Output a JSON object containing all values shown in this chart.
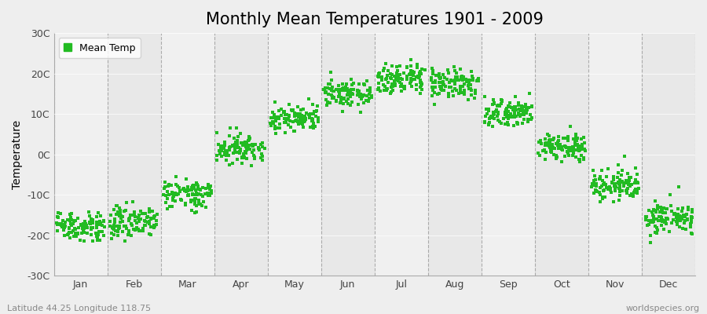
{
  "title": "Monthly Mean Temperatures 1901 - 2009",
  "ylabel": "Temperature",
  "yticks": [
    -30,
    -20,
    -10,
    0,
    10,
    20,
    30
  ],
  "ytick_labels": [
    "-30C",
    "-20C",
    "-10C",
    "0C",
    "10C",
    "20C",
    "30C"
  ],
  "ylim": [
    -30,
    30
  ],
  "xlim": [
    0,
    12
  ],
  "months": [
    "Jan",
    "Feb",
    "Mar",
    "Apr",
    "May",
    "Jun",
    "Jul",
    "Aug",
    "Sep",
    "Oct",
    "Nov",
    "Dec"
  ],
  "month_centers": [
    0.5,
    1.5,
    2.5,
    3.5,
    4.5,
    5.5,
    6.5,
    7.5,
    8.5,
    9.5,
    10.5,
    11.5
  ],
  "month_means": [
    -18.0,
    -16.5,
    -9.5,
    1.5,
    9.0,
    15.5,
    19.0,
    17.5,
    10.5,
    2.0,
    -7.5,
    -15.5
  ],
  "amplitude": 18.5,
  "phase_shift": 1.0,
  "base_temp": 0.8,
  "year_noise_std": 1.5,
  "month_noise_std": 1.2,
  "n_years": 109,
  "dot_color": "#22bb22",
  "dot_size": 5,
  "background_color": "#eeeeee",
  "stripe_colors": [
    "#f0f0f0",
    "#e8e8e8"
  ],
  "legend_label": "Mean Temp",
  "bottom_left_text": "Latitude 44.25 Longitude 118.75",
  "bottom_right_text": "worldspecies.org",
  "dashed_line_color": "#909090",
  "title_fontsize": 15,
  "axis_fontsize": 10,
  "tick_fontsize": 9,
  "annotation_fontsize": 8,
  "random_seed": 12345
}
